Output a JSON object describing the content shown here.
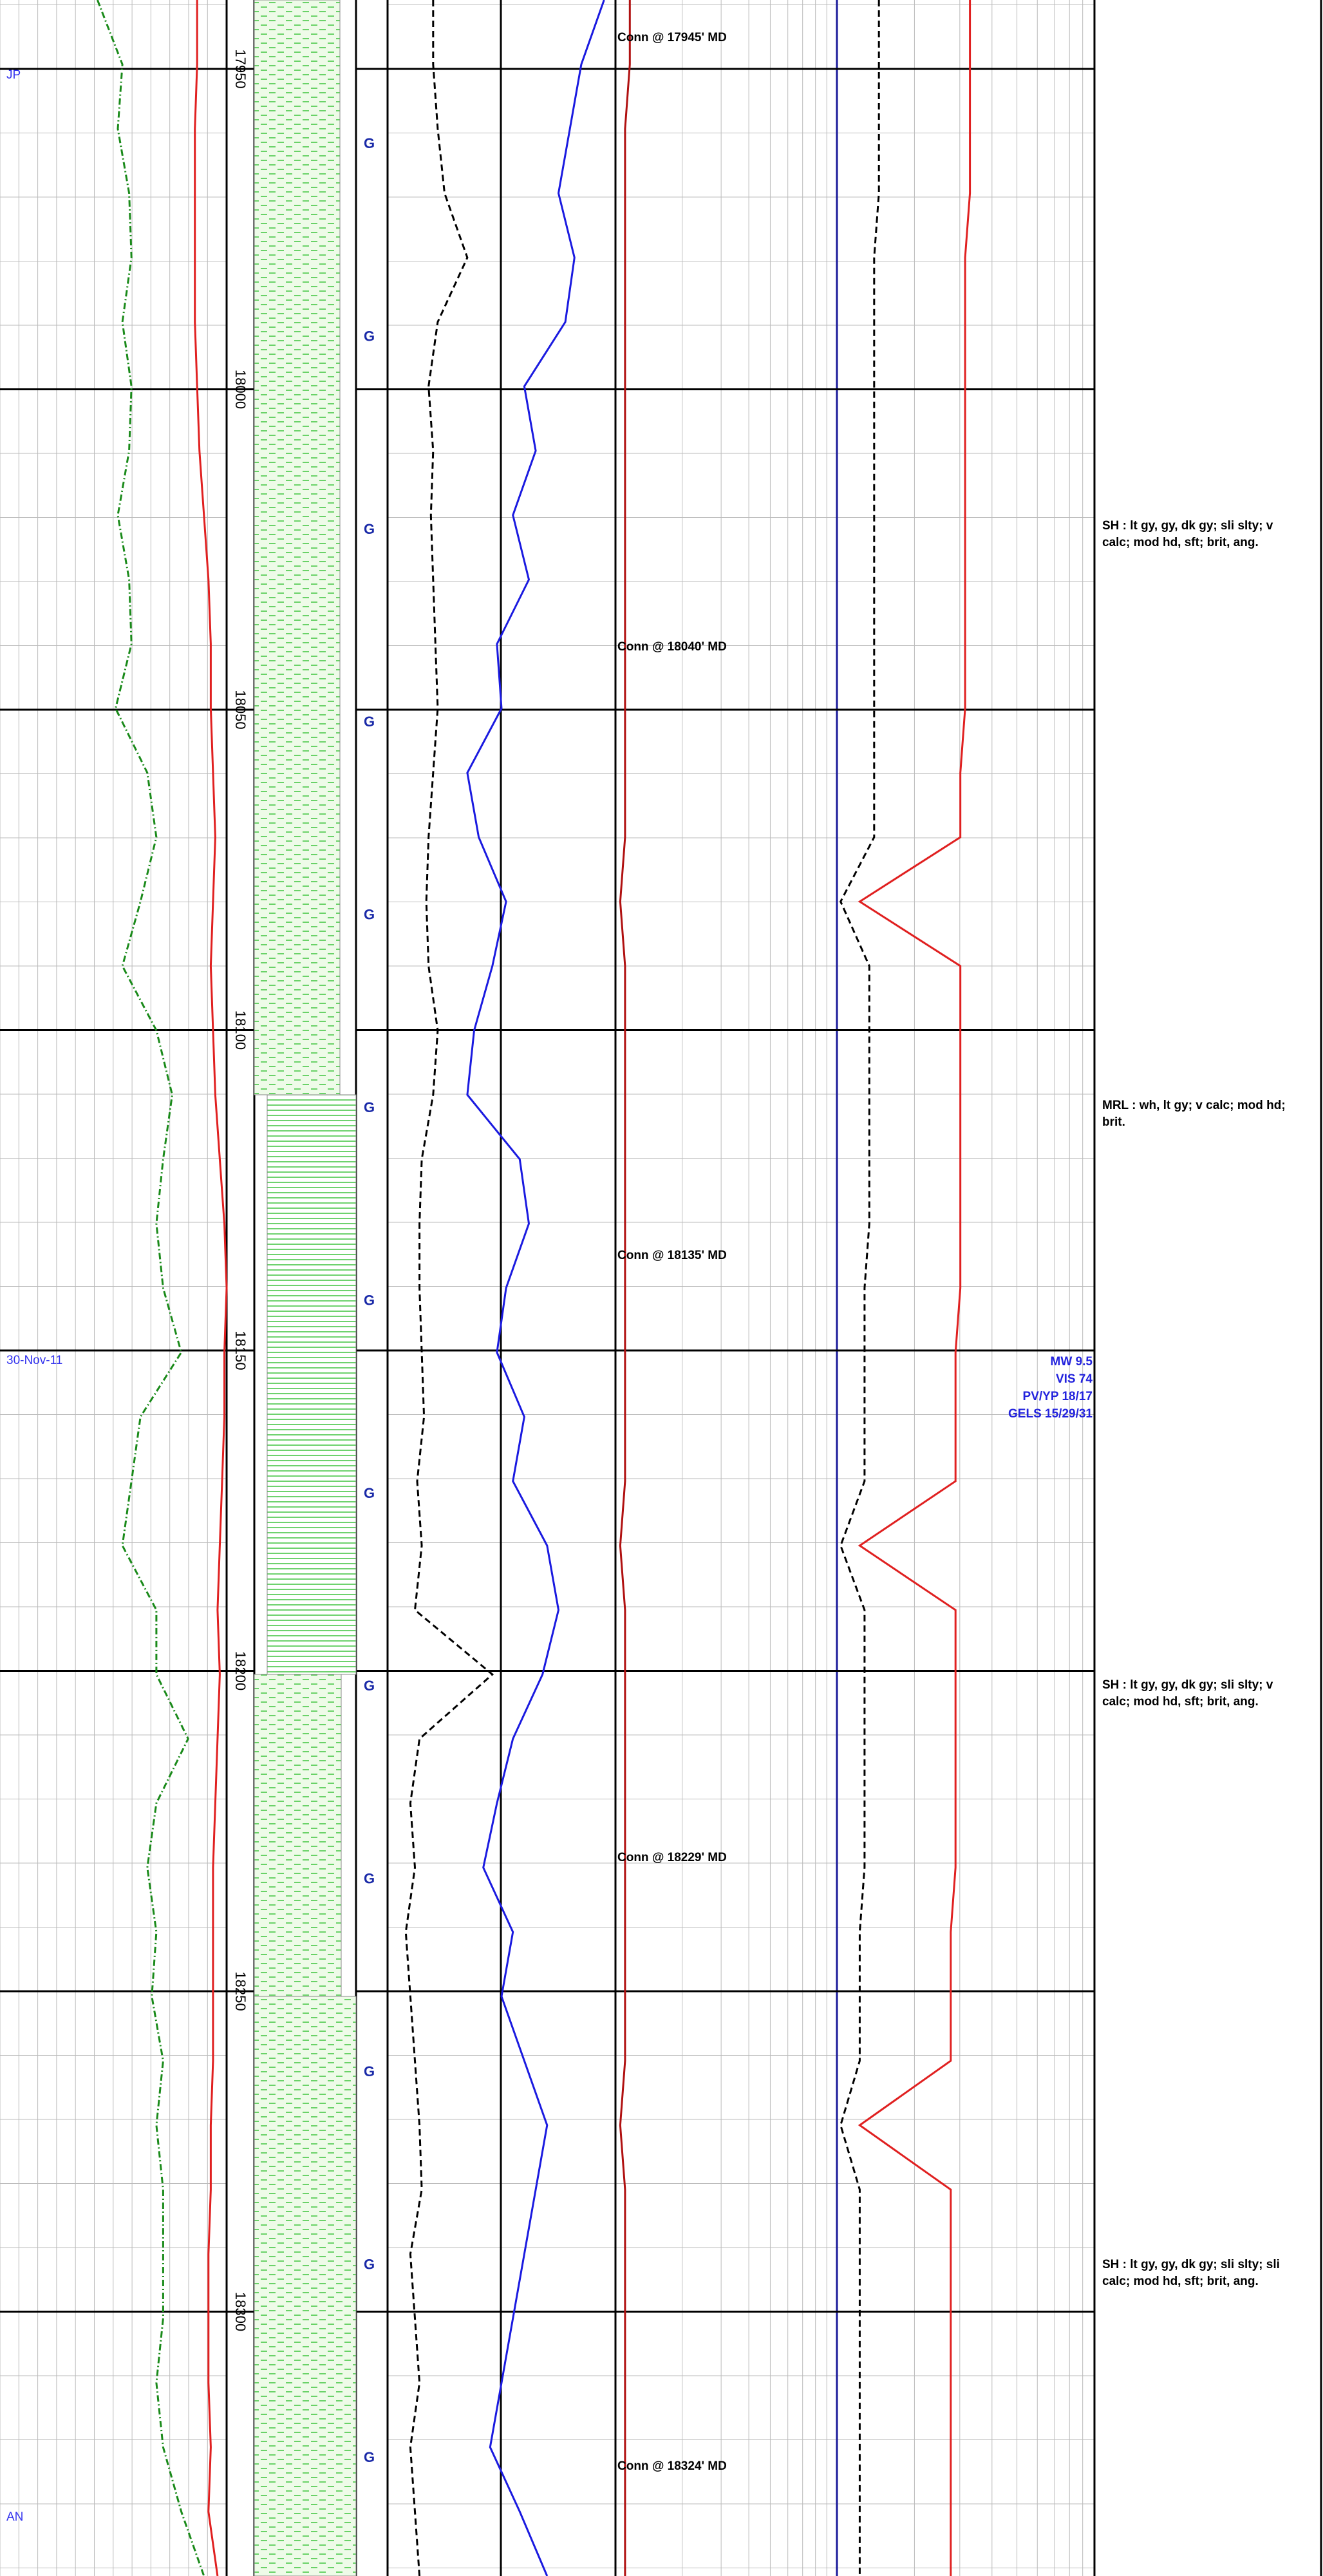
{
  "header_notes": {
    "top": "JP",
    "date": "30-Nov-11",
    "bottom": "AN"
  },
  "depth_labels": [
    17950,
    18000,
    18050,
    18100,
    18150,
    18200,
    18250,
    18300
  ],
  "connections": [
    "Conn @ 17945' MD",
    "Conn @ 18040' MD",
    "Conn @ 18135' MD",
    "Conn @ 18229' MD",
    "Conn @ 18324' MD"
  ],
  "gas_markers": [
    "G",
    "G",
    "G",
    "G",
    "G",
    "G",
    "G",
    "G",
    "G",
    "G",
    "G",
    "G",
    "G"
  ],
  "lithology_descriptions": [
    [
      "SH : lt gy, gy, dk gy;  sli slty;  v",
      "calc;  mod hd, sft;  brit, ang."
    ],
    [
      "MRL : wh, lt gy;  v calc;  mod hd;",
      "brit."
    ],
    [
      "SH : lt gy, gy, dk gy;  sli slty;  v",
      "calc;  mod hd, sft;  brit, ang."
    ],
    [
      "SH : lt gy, gy, dk gy;  sli slty;  sli",
      "calc;  mod hd, sft;  brit, ang."
    ]
  ],
  "mud_properties": [
    "MW 9.5",
    "VIS 74",
    "PV/YP 18/17",
    "GELS 15/29/31"
  ],
  "curves": [
    {
      "track": "left",
      "color": "#1a8a1a",
      "style": "dash-dot",
      "values": [
        43,
        54,
        52,
        57,
        58,
        54,
        58,
        57,
        52,
        57,
        58,
        51,
        65,
        69,
        62,
        54,
        69,
        76,
        72,
        69,
        72,
        80,
        62,
        58,
        54,
        69,
        69,
        83,
        69,
        65,
        69,
        67,
        72,
        69,
        72,
        72,
        72,
        69,
        72,
        80,
        90
      ]
    },
    {
      "track": "left",
      "color": "#e02020",
      "style": "solid",
      "values": [
        87,
        87,
        86,
        86,
        86,
        86,
        87,
        88,
        90,
        92,
        93,
        93,
        94,
        95,
        94,
        93,
        94,
        95,
        97,
        99,
        100,
        99,
        99,
        98,
        97,
        96,
        97,
        96,
        95,
        94,
        94,
        94,
        94,
        93,
        93,
        92,
        92,
        92,
        93,
        92,
        96
      ]
    },
    {
      "track": "gas",
      "color": "#000000",
      "style": "dash",
      "values": [
        20,
        20,
        22,
        25,
        35,
        22,
        18,
        20,
        19,
        20,
        21,
        22,
        20,
        18,
        17,
        18,
        22,
        20,
        15,
        14,
        14,
        15,
        16,
        13,
        15,
        12,
        46,
        14,
        10,
        12,
        8,
        10,
        12,
        14,
        15,
        10,
        12,
        14,
        10,
        12,
        14
      ]
    },
    {
      "track": "gas",
      "color": "#1a1ae0",
      "style": "solid",
      "values": [
        95,
        85,
        80,
        75,
        82,
        78,
        60,
        65,
        55,
        62,
        48,
        50,
        35,
        40,
        52,
        46,
        38,
        35,
        58,
        62,
        52,
        48,
        60,
        55,
        70,
        75,
        68,
        55,
        48,
        42,
        55,
        50,
        60,
        70,
        65,
        60,
        55,
        50,
        45,
        58,
        70
      ]
    },
    {
      "track": "right",
      "color": "#b01010",
      "style": "solid",
      "values": [
        3,
        3,
        2,
        2,
        2,
        2,
        2,
        2,
        2,
        2,
        2,
        2,
        2,
        2,
        1,
        2,
        2,
        2,
        2,
        2,
        2,
        2,
        2,
        2,
        1,
        2,
        2,
        2,
        2,
        2,
        2,
        2,
        2,
        1,
        2,
        2,
        2,
        2,
        2,
        2,
        2
      ]
    },
    {
      "track": "right",
      "color": "#000000",
      "style": "dash",
      "values": [
        55,
        55,
        55,
        55,
        54,
        54,
        54,
        54,
        54,
        54,
        54,
        54,
        54,
        54,
        47,
        53,
        53,
        53,
        53,
        53,
        52,
        52,
        52,
        52,
        47,
        52,
        52,
        52,
        52,
        52,
        51,
        51,
        51,
        47,
        51,
        51,
        51,
        51,
        51,
        51,
        51
      ]
    },
    {
      "track": "right",
      "color": "#e02020",
      "style": "solid",
      "values": [
        74,
        74,
        74,
        74,
        73,
        73,
        73,
        73,
        73,
        73,
        73,
        73,
        72,
        72,
        51,
        72,
        72,
        72,
        72,
        72,
        72,
        71,
        71,
        71,
        51,
        71,
        71,
        71,
        71,
        71,
        70,
        70,
        70,
        51,
        70,
        70,
        70,
        70,
        70,
        70,
        70
      ]
    }
  ]
}
